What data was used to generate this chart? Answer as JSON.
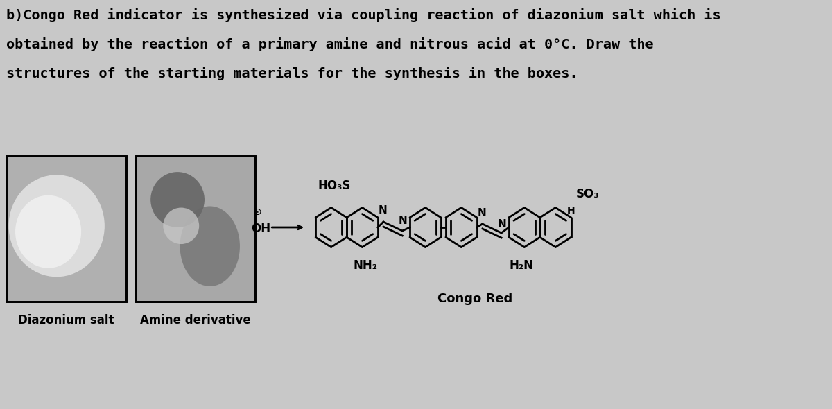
{
  "background_color": "#c8c8c8",
  "white_bg": "#ffffff",
  "title_lines": [
    "b)Congo Red indicator is synthesized via coupling reaction of diazonium salt which is",
    "obtained by the reaction of a primary amine and nitrous acid at 0°C. Draw the",
    "structures of the starting materials for the synthesis in the boxes."
  ],
  "title_fontsize": 14.5,
  "box1_label": "Diazonium salt",
  "box2_label": "Amine derivative",
  "congo_red_label": "Congo Red",
  "text_color": "#000000",
  "lw_main": 2.0
}
